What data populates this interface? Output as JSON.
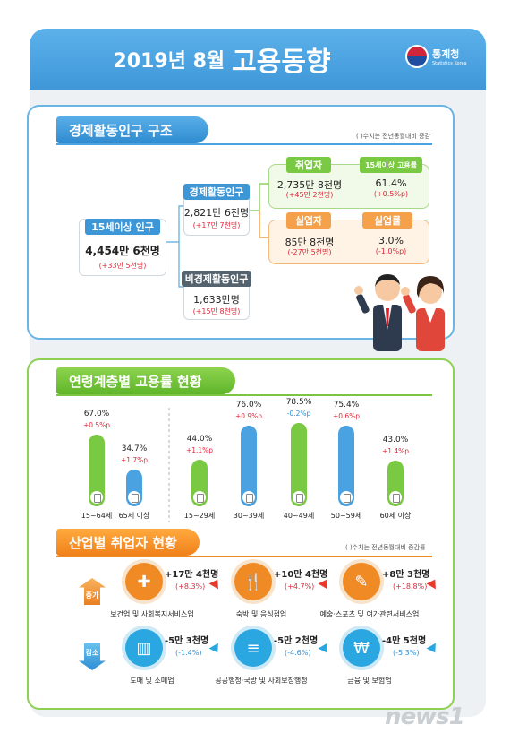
{
  "header": {
    "title_date": "2019년 8월",
    "title_main": "고용동향",
    "logo_kr": "통계청",
    "logo_en": "Statistics Korea"
  },
  "structure": {
    "section_title": "경제활동인구 구조",
    "note": "( )수치는 전년동월대비 증감",
    "pop15": {
      "label": "15세이상 인구",
      "value": "4,454만 6천명",
      "change": "(+33만 5천명)"
    },
    "active": {
      "label": "경제활동인구",
      "value": "2,821만 6천명",
      "change": "(+17만 7천명)"
    },
    "inactive": {
      "label": "비경제활동인구",
      "value": "1,633만명",
      "change": "(+15만 8천명)"
    },
    "employed": {
      "label": "취업자",
      "value": "2,735만 8천명",
      "change": "(+45만 2천명)"
    },
    "emp_rate": {
      "label": "15세이상 고용률",
      "value": "61.4%",
      "change": "(+0.5%p)"
    },
    "unemployed": {
      "label": "실업자",
      "value": "85만 8천명",
      "change": "(-27만 5천명)"
    },
    "unemp_rate": {
      "label": "실업률",
      "value": "3.0%",
      "change": "(-1.0%p)"
    }
  },
  "age": {
    "section_title": "연령계층별 고용률 현황",
    "bars": [
      {
        "label": "15~64세",
        "value": "67.0%",
        "change": "+0.5%p",
        "num": 67.0,
        "color": "#7ac943",
        "neg": false
      },
      {
        "label": "65세 이상",
        "value": "34.7%",
        "change": "+1.7%p",
        "num": 34.7,
        "color": "#4aa3e0",
        "neg": false
      },
      {
        "label": "15~29세",
        "value": "44.0%",
        "change": "+1.1%p",
        "num": 44.0,
        "color": "#7ac943",
        "neg": false
      },
      {
        "label": "30~39세",
        "value": "76.0%",
        "change": "+0.9%p",
        "num": 76.0,
        "color": "#4aa3e0",
        "neg": false
      },
      {
        "label": "40~49세",
        "value": "78.5%",
        "change": "-0.2%p",
        "num": 78.5,
        "color": "#7ac943",
        "neg": true
      },
      {
        "label": "50~59세",
        "value": "75.4%",
        "change": "+0.6%p",
        "num": 75.4,
        "color": "#4aa3e0",
        "neg": false
      },
      {
        "label": "60세 이상",
        "value": "43.0%",
        "change": "+1.4%p",
        "num": 43.0,
        "color": "#7ac943",
        "neg": false
      }
    ]
  },
  "industry": {
    "section_title": "산업별 취업자 현황",
    "note": "( )수치는 전년동월대비 증감률",
    "increase_label": "증가",
    "decrease_label": "감소",
    "increase": [
      {
        "value": "+17만 4천명",
        "rate": "(+8.3%)",
        "label": "보건업 및 사회복지서비스업",
        "icon": "first-aid-kit-icon"
      },
      {
        "value": "+10만 4천명",
        "rate": "(+4.7%)",
        "label": "숙박 및 음식점업",
        "icon": "plate-cutlery-icon"
      },
      {
        "value": "+8만 3천명",
        "rate": "(+18.8%)",
        "label": "예술·스포츠 및 여가관련서비스업",
        "icon": "palette-icon"
      }
    ],
    "decrease": [
      {
        "value": "-5만 3천명",
        "rate": "(-1.4%)",
        "label": "도매 및 소매업",
        "icon": "shopping-basket-icon"
      },
      {
        "value": "-5만 2천명",
        "rate": "(-4.6%)",
        "label": "공공행정·국방 및 사회보장행정",
        "icon": "scroll-icon"
      },
      {
        "value": "-4만 5천명",
        "rate": "(-5.3%)",
        "label": "금융 및 보험업",
        "icon": "laptop-won-icon"
      }
    ]
  },
  "watermark": "news1"
}
